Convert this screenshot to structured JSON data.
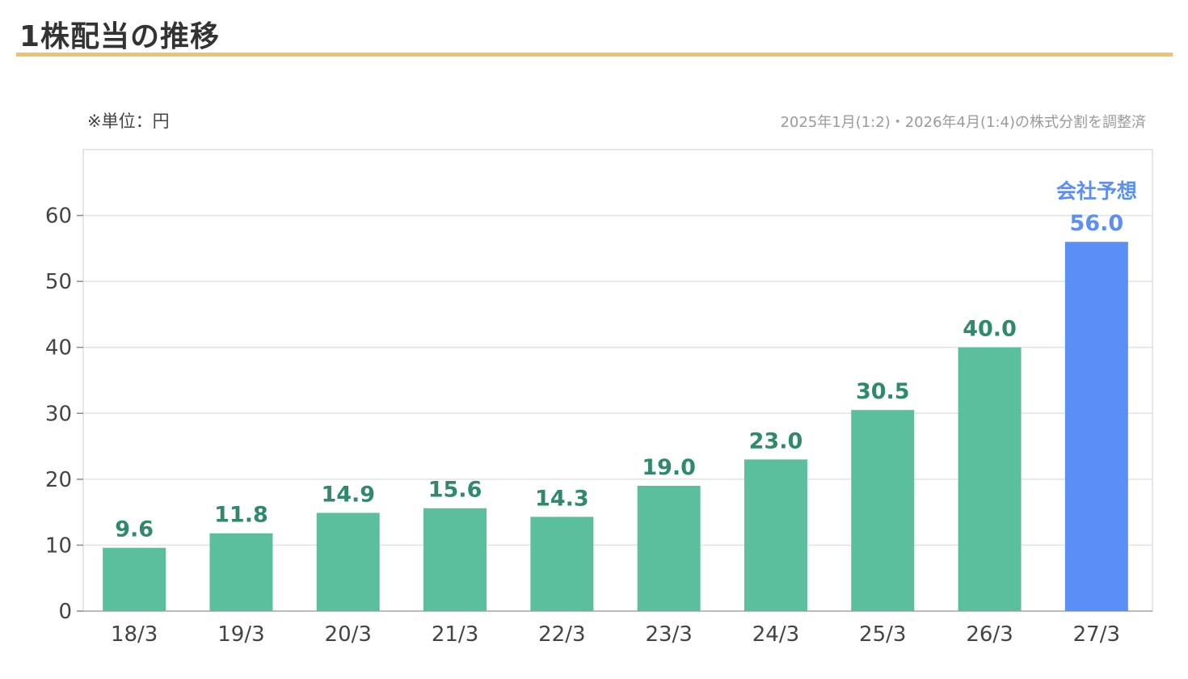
{
  "header": {
    "title": "1株配当の推移"
  },
  "notes": {
    "unit": "※単位：円",
    "split_adjustment": "2025年1月(1:2)・2026年4月(1:4)の株式分割を調整済"
  },
  "chart_data": {
    "type": "bar",
    "title": "1株配当の推移",
    "categories": [
      "18/3",
      "19/3",
      "20/3",
      "21/3",
      "22/3",
      "23/3",
      "24/3",
      "25/3",
      "26/3",
      "27/3"
    ],
    "values": [
      9.6,
      11.8,
      14.9,
      15.6,
      14.3,
      19.0,
      23.0,
      30.5,
      40.0,
      56.0
    ],
    "value_labels": [
      "9.6",
      "11.8",
      "14.9",
      "15.6",
      "14.3",
      "19.0",
      "23.0",
      "30.5",
      "40.0",
      "56.0"
    ],
    "forecast_index": 9,
    "forecast_label": "会社予想",
    "ylim": [
      0,
      70
    ],
    "yticks": [
      0,
      10,
      20,
      30,
      40,
      50,
      60
    ],
    "grid": true,
    "legend": "none",
    "colors": {
      "actual": "#5bbf9d",
      "forecast": "#5b8ff5",
      "actual_label": "#2e8a6a",
      "forecast_label": "#5b8ff5",
      "grid": "#e3e3e3",
      "frame": "#dddddd",
      "title_rule": "#f0c36b"
    }
  }
}
